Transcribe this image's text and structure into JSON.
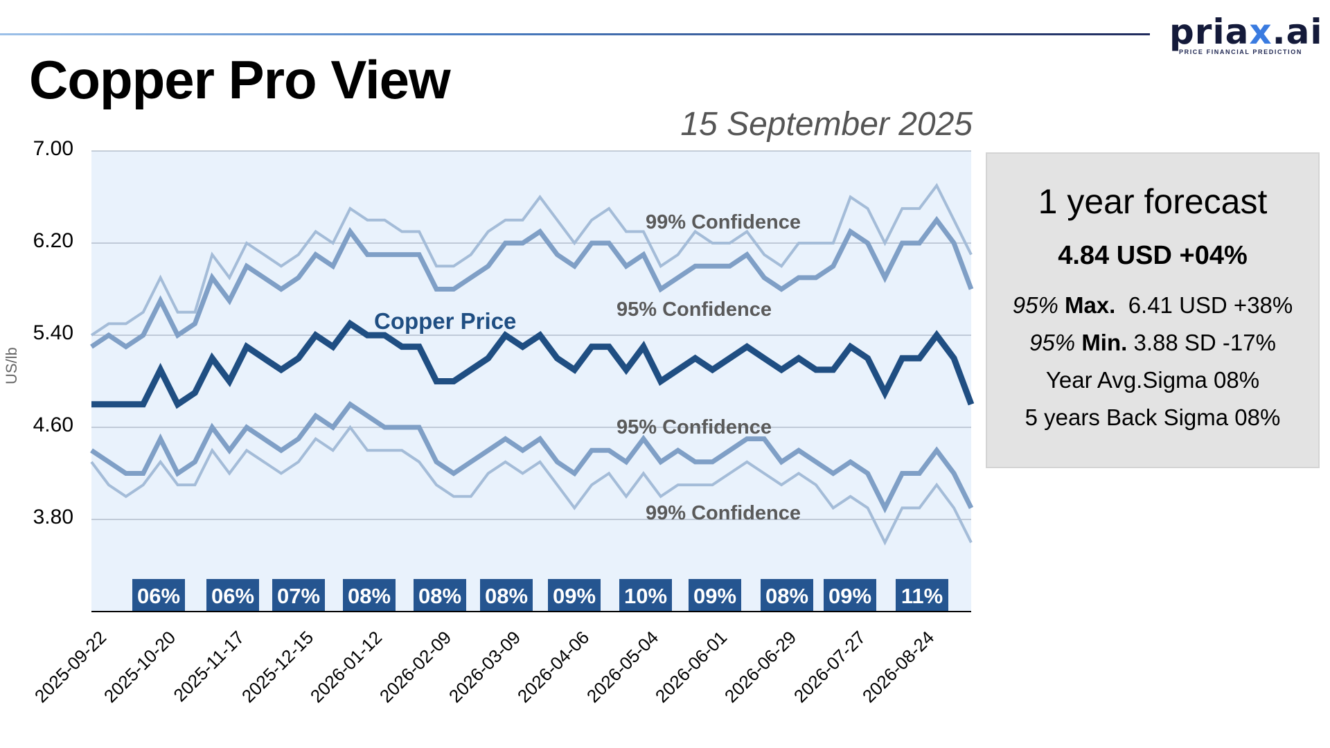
{
  "header": {
    "title": "Copper Pro View",
    "date": "15 September 2025",
    "logo": {
      "word_prefix": "pria",
      "word_x": "x",
      "word_suffix": ".ai",
      "tagline": "PRICE FINANCIAL PREDICTION"
    }
  },
  "forecast_panel": {
    "heading": "1 year forecast",
    "value": "4.84 USD +04%",
    "max_label_italic": "95%",
    "max_label_bold": "Max.",
    "max_value": "6.41 USD +38%",
    "min_label_italic": "95%",
    "min_label_bold": "Min.",
    "min_value": "3.88 SD -17%",
    "year_avg_sigma": "Year Avg.Sigma 08%",
    "back_sigma": "5 years Back Sigma 08%"
  },
  "colors": {
    "price": "#1f4e82",
    "band95": "#7f9fc6",
    "band99": "#a4bcd8",
    "plot_bg": "#e9f2fc",
    "badge": "#255590",
    "annotation": "#5a5a5a"
  },
  "chart_data": {
    "type": "line",
    "title": "Copper Pro View",
    "xlabel": "",
    "ylabel": "US/lb",
    "ylim": [
      3.0,
      7.0
    ],
    "yticks": [
      "7.00",
      "6.20",
      "5.40",
      "4.60",
      "3.80"
    ],
    "ytick_values": [
      7.0,
      6.2,
      5.4,
      4.6,
      3.8
    ],
    "grid": true,
    "xtick_labels": [
      "2025-09-22",
      "2025-10-20",
      "2025-11-17",
      "2025-12-15",
      "2026-01-12",
      "2026-02-09",
      "2026-03-09",
      "2026-04-06",
      "2026-05-04",
      "2026-06-01",
      "2026-06-29",
      "2026-07-27",
      "2026-08-24"
    ],
    "xtick_every": 4,
    "n_points": 52,
    "series": [
      {
        "name": "Copper Price",
        "role": "price",
        "values": [
          4.8,
          4.8,
          4.8,
          4.8,
          5.1,
          4.8,
          4.9,
          5.2,
          5.0,
          5.3,
          5.2,
          5.1,
          5.2,
          5.4,
          5.3,
          5.5,
          5.4,
          5.4,
          5.3,
          5.3,
          5.0,
          5.0,
          5.1,
          5.2,
          5.4,
          5.3,
          5.4,
          5.2,
          5.1,
          5.3,
          5.3,
          5.1,
          5.3,
          5.0,
          5.1,
          5.2,
          5.1,
          5.2,
          5.3,
          5.2,
          5.1,
          5.2,
          5.1,
          5.1,
          5.3,
          5.2,
          4.9,
          5.2,
          5.2,
          5.4,
          5.2,
          4.8
        ]
      },
      {
        "name": "99% Confidence upper",
        "role": "band99",
        "values": [
          5.4,
          5.5,
          5.5,
          5.6,
          5.9,
          5.6,
          5.6,
          6.1,
          5.9,
          6.2,
          6.1,
          6.0,
          6.1,
          6.3,
          6.2,
          6.5,
          6.4,
          6.4,
          6.3,
          6.3,
          6.0,
          6.0,
          6.1,
          6.3,
          6.4,
          6.4,
          6.6,
          6.4,
          6.2,
          6.4,
          6.5,
          6.3,
          6.3,
          6.0,
          6.1,
          6.3,
          6.2,
          6.2,
          6.3,
          6.1,
          6.0,
          6.2,
          6.2,
          6.2,
          6.6,
          6.5,
          6.2,
          6.5,
          6.5,
          6.7,
          6.4,
          6.1
        ]
      },
      {
        "name": "95% Confidence upper",
        "role": "band95",
        "values": [
          5.3,
          5.4,
          5.3,
          5.4,
          5.7,
          5.4,
          5.5,
          5.9,
          5.7,
          6.0,
          5.9,
          5.8,
          5.9,
          6.1,
          6.0,
          6.3,
          6.1,
          6.1,
          6.1,
          6.1,
          5.8,
          5.8,
          5.9,
          6.0,
          6.2,
          6.2,
          6.3,
          6.1,
          6.0,
          6.2,
          6.2,
          6.0,
          6.1,
          5.8,
          5.9,
          6.0,
          6.0,
          6.0,
          6.1,
          5.9,
          5.8,
          5.9,
          5.9,
          6.0,
          6.3,
          6.2,
          5.9,
          6.2,
          6.2,
          6.4,
          6.2,
          5.8
        ]
      },
      {
        "name": "95% Confidence lower",
        "role": "band95",
        "values": [
          4.4,
          4.3,
          4.2,
          4.2,
          4.5,
          4.2,
          4.3,
          4.6,
          4.4,
          4.6,
          4.5,
          4.4,
          4.5,
          4.7,
          4.6,
          4.8,
          4.7,
          4.6,
          4.6,
          4.6,
          4.3,
          4.2,
          4.3,
          4.4,
          4.5,
          4.4,
          4.5,
          4.3,
          4.2,
          4.4,
          4.4,
          4.3,
          4.5,
          4.3,
          4.4,
          4.3,
          4.3,
          4.4,
          4.5,
          4.5,
          4.3,
          4.4,
          4.3,
          4.2,
          4.3,
          4.2,
          3.9,
          4.2,
          4.2,
          4.4,
          4.2,
          3.9
        ]
      },
      {
        "name": "99% Confidence lower",
        "role": "band99",
        "values": [
          4.3,
          4.1,
          4.0,
          4.1,
          4.3,
          4.1,
          4.1,
          4.4,
          4.2,
          4.4,
          4.3,
          4.2,
          4.3,
          4.5,
          4.4,
          4.6,
          4.4,
          4.4,
          4.4,
          4.3,
          4.1,
          4.0,
          4.0,
          4.2,
          4.3,
          4.2,
          4.3,
          4.1,
          3.9,
          4.1,
          4.2,
          4.0,
          4.2,
          4.0,
          4.1,
          4.1,
          4.1,
          4.2,
          4.3,
          4.2,
          4.1,
          4.2,
          4.1,
          3.9,
          4.0,
          3.9,
          3.6,
          3.9,
          3.9,
          4.1,
          3.9,
          3.6
        ]
      }
    ],
    "annotations": [
      {
        "text": "Copper Price",
        "near_series": "Copper Price"
      },
      {
        "text": "99% Confidence",
        "near_series": "99% Confidence upper"
      },
      {
        "text": "95% Confidence",
        "near_series": "95% Confidence upper"
      },
      {
        "text": "95% Confidence",
        "near_series": "95% Confidence lower"
      },
      {
        "text": "99% Confidence",
        "near_series": "99% Confidence lower"
      }
    ],
    "sigma_badges": [
      {
        "label": "06%",
        "point_index": 3
      },
      {
        "label": "06%",
        "point_index": 7
      },
      {
        "label": "07%",
        "point_index": 11
      },
      {
        "label": "08%",
        "point_index": 15
      },
      {
        "label": "08%",
        "point_index": 19
      },
      {
        "label": "08%",
        "point_index": 23
      },
      {
        "label": "09%",
        "point_index": 27
      },
      {
        "label": "10%",
        "point_index": 31
      },
      {
        "label": "09%",
        "point_index": 35
      },
      {
        "label": "08%",
        "point_index": 39
      },
      {
        "label": "09%",
        "point_index": 43
      },
      {
        "label": "11%",
        "point_index": 47
      }
    ]
  }
}
